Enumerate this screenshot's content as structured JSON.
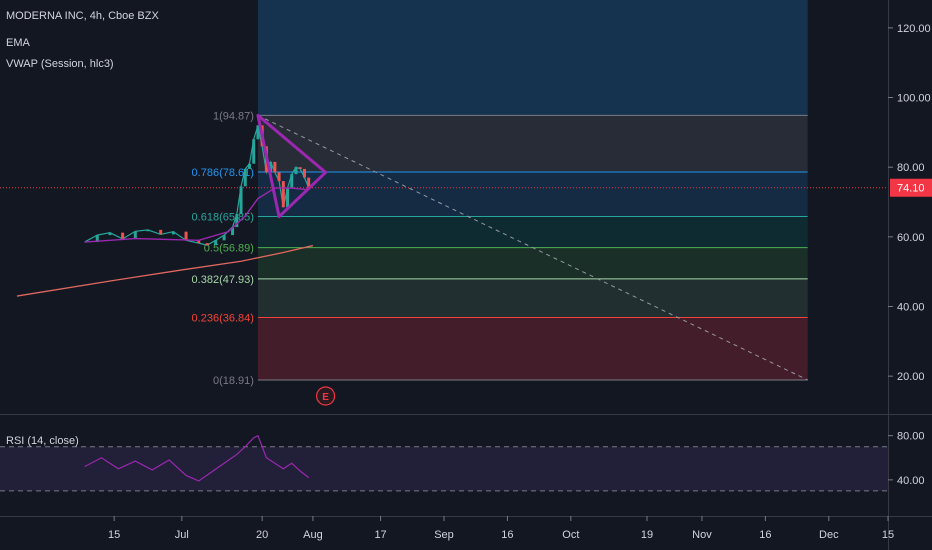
{
  "legend": {
    "title": "MODERNA INC, 4h, Cboe BZX",
    "ema": "EMA",
    "vwap": "VWAP (Session, hlc3)",
    "rsi": "RSI (14, close)"
  },
  "price_axis": {
    "ticks": [
      "120.00",
      "100.00",
      "80.00",
      "60.00",
      "40.00",
      "20.00"
    ],
    "current_price": "74.10"
  },
  "rsi_axis": {
    "ticks": [
      "80.00",
      "40.00"
    ]
  },
  "time_axis": {
    "ticks": [
      "15",
      "Jul",
      "20",
      "Aug",
      "17",
      "Sep",
      "16",
      "Oct",
      "19",
      "Nov",
      "16",
      "Dec",
      "15"
    ]
  },
  "earnings_marker": "E",
  "colors": {
    "background": "#131722",
    "price_candles_up": "#26a69a",
    "price_candles_down": "#ef5350",
    "ema": "#e0675f",
    "vwap": "#9c27b0",
    "triangle": "#9c27b0",
    "current_price": "#f23645",
    "rsi": "#9c27b0"
  },
  "chart_data": {
    "type": "line",
    "price_range": [
      10,
      128
    ],
    "rsi_range": [
      10,
      96
    ],
    "current_price": 74.1,
    "fib_levels": [
      {
        "ratio": "1",
        "label": "1(94.87)",
        "price": 94.87,
        "color": "#787b86",
        "fill": "rgba(120,123,134,0.22)"
      },
      {
        "ratio": "0.786",
        "label": "0.786(78.61)",
        "price": 78.61,
        "color": "#2196f3",
        "fill": "rgba(33,150,243,0.16)"
      },
      {
        "ratio": "0.618",
        "label": "0.618(65.85)",
        "price": 65.85,
        "color": "#26a69a",
        "fill": "rgba(0,150,136,0.16)"
      },
      {
        "ratio": "0.5",
        "label": "0.5(56.89)",
        "price": 56.89,
        "color": "#4caf50",
        "fill": "rgba(76,175,80,0.16)"
      },
      {
        "ratio": "0.382",
        "label": "0.382(47.93)",
        "price": 47.93,
        "color": "#a5d6a7",
        "fill": "rgba(129,199,132,0.14)"
      },
      {
        "ratio": "0.236",
        "label": "0.236(36.84)",
        "price": 36.84,
        "color": "#f44336",
        "fill": "rgba(242,54,69,0.22)"
      },
      {
        "ratio": "0",
        "label": "0(18.91)",
        "price": 18.91,
        "color": "#787b86",
        "fill": ""
      }
    ],
    "price_series": [
      {
        "date": "2020-06-08",
        "price": 58.5
      },
      {
        "date": "2020-06-11",
        "price": 60.5
      },
      {
        "date": "2020-06-14",
        "price": 61.2
      },
      {
        "date": "2020-06-17",
        "price": 59.4
      },
      {
        "date": "2020-06-20",
        "price": 61.6
      },
      {
        "date": "2020-06-23",
        "price": 62.0
      },
      {
        "date": "2020-06-26",
        "price": 60.7
      },
      {
        "date": "2020-06-29",
        "price": 61.5
      },
      {
        "date": "2020-07-02",
        "price": 59.0
      },
      {
        "date": "2020-07-05",
        "price": 58.2
      },
      {
        "date": "2020-07-07",
        "price": 57.6
      },
      {
        "date": "2020-07-09",
        "price": 59.0
      },
      {
        "date": "2020-07-11",
        "price": 60.5
      },
      {
        "date": "2020-07-13",
        "price": 62.8
      },
      {
        "date": "2020-07-14",
        "price": 66.5
      },
      {
        "date": "2020-07-15",
        "price": 74.5
      },
      {
        "date": "2020-07-16",
        "price": 79.5
      },
      {
        "date": "2020-07-17",
        "price": 81.0
      },
      {
        "date": "2020-07-18",
        "price": 88.0
      },
      {
        "date": "2020-07-19",
        "price": 92.0
      },
      {
        "date": "2020-07-20",
        "price": 86.0
      },
      {
        "date": "2020-07-21",
        "price": 78.5
      },
      {
        "date": "2020-07-22",
        "price": 81.5
      },
      {
        "date": "2020-07-23",
        "price": 78.5
      },
      {
        "date": "2020-07-24",
        "price": 76.0
      },
      {
        "date": "2020-07-25",
        "price": 68.5
      },
      {
        "date": "2020-07-26",
        "price": 74.0
      },
      {
        "date": "2020-07-27",
        "price": 78.0
      },
      {
        "date": "2020-07-28",
        "price": 80.0
      },
      {
        "date": "2020-07-29",
        "price": 79.5
      },
      {
        "date": "2020-07-30",
        "price": 77.0
      },
      {
        "date": "2020-07-31",
        "price": 74.1
      }
    ],
    "ema_series": [
      {
        "date": "2020-05-23",
        "price": 43.0
      },
      {
        "date": "2020-06-15",
        "price": 47.5
      },
      {
        "date": "2020-07-01",
        "price": 50.5
      },
      {
        "date": "2020-07-15",
        "price": 53.0
      },
      {
        "date": "2020-07-25",
        "price": 55.5
      },
      {
        "date": "2020-08-01",
        "price": 57.5
      }
    ],
    "vwap_series": [
      {
        "date": "2020-06-08",
        "price": 58.5
      },
      {
        "date": "2020-06-20",
        "price": 59.5
      },
      {
        "date": "2020-07-05",
        "price": 59.0
      },
      {
        "date": "2020-07-12",
        "price": 61.5
      },
      {
        "date": "2020-07-16",
        "price": 66.0
      },
      {
        "date": "2020-07-19",
        "price": 71.0
      },
      {
        "date": "2020-07-23",
        "price": 74.0
      },
      {
        "date": "2020-07-27",
        "price": 74.0
      },
      {
        "date": "2020-07-31",
        "price": 73.5
      }
    ],
    "triangle": [
      {
        "date": "2020-07-19",
        "price": 94.87
      },
      {
        "date": "2020-08-04",
        "price": 78.5
      },
      {
        "date": "2020-07-24",
        "price": 65.8
      }
    ],
    "trendline": [
      {
        "date": "2020-07-19",
        "price": 94.87
      },
      {
        "date": "2020-11-26",
        "price": 18.91
      }
    ],
    "rsi_series": [
      {
        "date": "2020-06-08",
        "value": 52
      },
      {
        "date": "2020-06-12",
        "value": 60
      },
      {
        "date": "2020-06-16",
        "value": 50
      },
      {
        "date": "2020-06-20",
        "value": 57
      },
      {
        "date": "2020-06-24",
        "value": 49
      },
      {
        "date": "2020-06-28",
        "value": 58
      },
      {
        "date": "2020-07-02",
        "value": 44
      },
      {
        "date": "2020-07-05",
        "value": 39
      },
      {
        "date": "2020-07-08",
        "value": 47
      },
      {
        "date": "2020-07-11",
        "value": 55
      },
      {
        "date": "2020-07-14",
        "value": 63
      },
      {
        "date": "2020-07-16",
        "value": 70
      },
      {
        "date": "2020-07-18",
        "value": 78
      },
      {
        "date": "2020-07-19",
        "value": 80
      },
      {
        "date": "2020-07-21",
        "value": 60
      },
      {
        "date": "2020-07-23",
        "value": 55
      },
      {
        "date": "2020-07-25",
        "value": 50
      },
      {
        "date": "2020-07-27",
        "value": 55
      },
      {
        "date": "2020-07-29",
        "value": 48
      },
      {
        "date": "2020-07-31",
        "value": 42
      }
    ],
    "rsi_bands": [
      70,
      30
    ],
    "earnings_date": "2020-08-04"
  }
}
